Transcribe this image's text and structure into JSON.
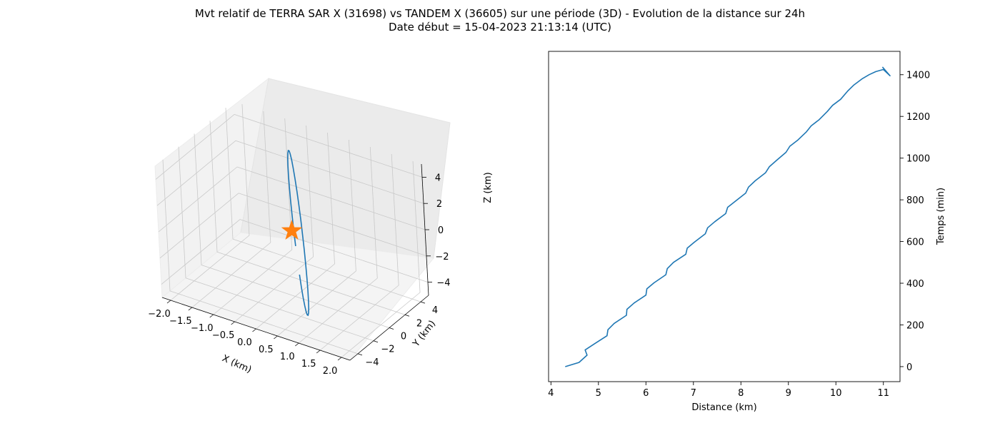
{
  "figure": {
    "title_line1": "Mvt relatif de TERRA SAR X (31698) vs TANDEM X (36605) sur une période (3D) - Evolution de la distance sur 24h",
    "title_line2": "Date début = 15-04-2023 21:13:14 (UTC)"
  },
  "chart_data": [
    {
      "type": "line3d",
      "xlabel": "X (km)",
      "ylabel": "Y (km)",
      "zlabel": "Z (km)",
      "xlim": [
        -2.2,
        2.2
      ],
      "ylim": [
        -5,
        5
      ],
      "zlim": [
        -5,
        5
      ],
      "xticks": [
        "−2.0",
        "−1.5",
        "−1.0",
        "−0.5",
        "0.0",
        "0.5",
        "1.0",
        "1.5",
        "2.0"
      ],
      "yticks": [
        "−4",
        "−2",
        "0",
        "2",
        "4"
      ],
      "zticks": [
        "−4",
        "−2",
        "0",
        "2",
        "4"
      ],
      "grid": true,
      "line_color": "#1f77b4",
      "marker_color": "#ff7f0e",
      "marker": "star",
      "marker_point": {
        "x": 0,
        "y": 0,
        "z": 0
      },
      "orbit": {
        "x_amplitude": 2.0,
        "y_amplitude": 4.3,
        "z_amplitude": 4.3
      }
    },
    {
      "type": "line",
      "xlabel": "Distance (km)",
      "ylabel": "Temps (min)",
      "xlim": [
        3.95,
        11.35
      ],
      "ylim": [
        -72,
        1512
      ],
      "xticks": [
        4,
        5,
        6,
        7,
        8,
        9,
        10,
        11
      ],
      "yticks": [
        0,
        200,
        400,
        600,
        800,
        1000,
        1200,
        1400
      ],
      "y_axis_side": "right",
      "line_color": "#1f77b4",
      "series": [
        {
          "x": [
            4.3,
            4.59,
            4.76,
            4.72,
            4.92,
            5.18,
            5.2,
            5.33,
            5.59,
            5.6,
            5.75,
            6.0,
            6.02,
            6.17,
            6.42,
            6.45,
            6.58,
            6.84,
            6.87,
            7.02,
            7.25,
            7.3,
            7.45,
            7.68,
            7.72,
            7.88,
            8.1,
            8.16,
            8.3,
            8.52,
            8.6,
            8.75,
            8.95,
            9.03,
            9.2,
            9.38,
            9.48,
            9.65,
            9.82,
            9.93,
            10.1,
            10.25,
            10.38,
            10.55,
            10.7,
            10.84,
            11.0,
            11.14,
            10.98
          ],
          "y": [
            0,
            20,
            55,
            80,
            110,
            148,
            177,
            207,
            246,
            275,
            305,
            343,
            373,
            402,
            441,
            470,
            500,
            539,
            568,
            597,
            637,
            666,
            695,
            734,
            764,
            793,
            832,
            861,
            891,
            930,
            959,
            989,
            1028,
            1057,
            1087,
            1126,
            1155,
            1185,
            1224,
            1253,
            1282,
            1322,
            1351,
            1380,
            1400,
            1415,
            1425,
            1395,
            1437
          ]
        }
      ]
    }
  ]
}
